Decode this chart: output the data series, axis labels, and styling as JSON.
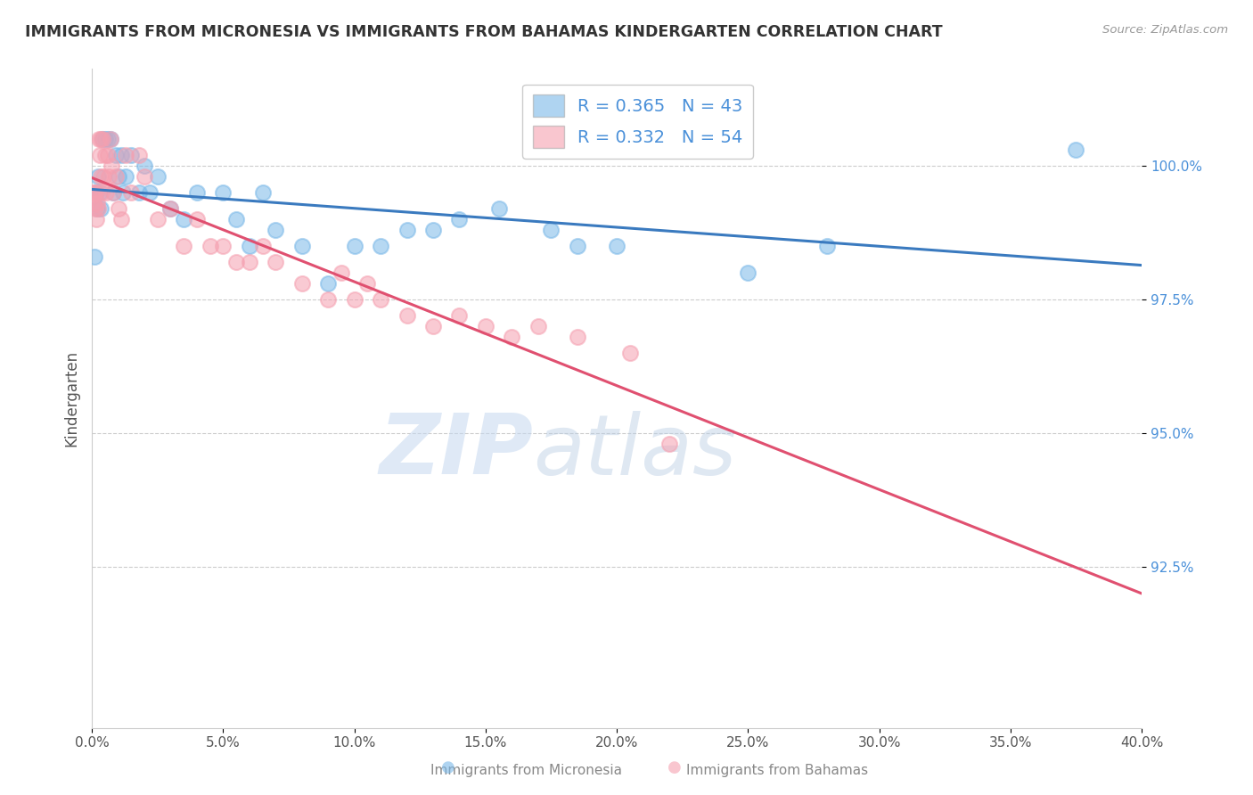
{
  "title": "IMMIGRANTS FROM MICRONESIA VS IMMIGRANTS FROM BAHAMAS KINDERGARTEN CORRELATION CHART",
  "source": "Source: ZipAtlas.com",
  "ylabel": "Kindergarten",
  "legend_label1": "Immigrants from Micronesia",
  "legend_label2": "Immigrants from Bahamas",
  "R1": 0.365,
  "N1": 43,
  "R2": 0.332,
  "N2": 54,
  "xmin": 0.0,
  "xmax": 40.0,
  "ymin": 89.5,
  "ymax": 101.8,
  "yticks": [
    92.5,
    95.0,
    97.5,
    100.0
  ],
  "xticks": [
    0.0,
    5.0,
    10.0,
    15.0,
    20.0,
    25.0,
    30.0,
    35.0,
    40.0
  ],
  "color_blue": "#7ab8e8",
  "color_pink": "#f5a0b0",
  "color_blue_line": "#3a7abf",
  "color_pink_line": "#e05070",
  "background_color": "#ffffff",
  "watermark_zip": "ZIP",
  "watermark_atlas": "atlas",
  "micronesia_x": [
    0.1,
    0.15,
    0.2,
    0.25,
    0.3,
    0.35,
    0.4,
    0.5,
    0.6,
    0.7,
    0.8,
    0.9,
    1.0,
    1.1,
    1.2,
    1.3,
    1.5,
    1.8,
    2.0,
    2.2,
    2.5,
    3.0,
    3.5,
    4.0,
    5.0,
    5.5,
    6.0,
    6.5,
    7.0,
    8.0,
    9.0,
    10.0,
    11.0,
    12.0,
    13.0,
    14.0,
    15.5,
    17.5,
    18.5,
    20.0,
    25.0,
    28.0,
    37.5
  ],
  "micronesia_y": [
    98.3,
    99.5,
    99.2,
    99.8,
    99.5,
    99.2,
    100.5,
    100.5,
    100.5,
    100.5,
    99.5,
    100.2,
    99.8,
    100.2,
    99.5,
    99.8,
    100.2,
    99.5,
    100.0,
    99.5,
    99.8,
    99.2,
    99.0,
    99.5,
    99.5,
    99.0,
    98.5,
    99.5,
    98.8,
    98.5,
    97.8,
    98.5,
    98.5,
    98.8,
    98.8,
    99.0,
    99.2,
    98.8,
    98.5,
    98.5,
    98.0,
    98.5,
    100.3
  ],
  "bahamas_x": [
    0.05,
    0.08,
    0.1,
    0.12,
    0.15,
    0.18,
    0.2,
    0.25,
    0.28,
    0.3,
    0.32,
    0.35,
    0.38,
    0.4,
    0.45,
    0.5,
    0.55,
    0.6,
    0.65,
    0.7,
    0.75,
    0.8,
    0.9,
    1.0,
    1.1,
    1.3,
    1.5,
    1.8,
    2.0,
    2.5,
    3.0,
    3.5,
    4.0,
    4.5,
    5.0,
    5.5,
    6.0,
    6.5,
    7.0,
    8.0,
    9.0,
    9.5,
    10.0,
    10.5,
    11.0,
    12.0,
    13.0,
    14.0,
    15.0,
    16.0,
    17.0,
    18.5,
    20.5,
    22.0
  ],
  "bahamas_y": [
    99.5,
    99.3,
    99.5,
    99.2,
    99.0,
    99.5,
    99.3,
    99.2,
    100.5,
    100.2,
    99.8,
    100.5,
    99.5,
    100.5,
    99.8,
    100.2,
    99.5,
    100.2,
    99.8,
    100.5,
    100.0,
    99.5,
    99.8,
    99.2,
    99.0,
    100.2,
    99.5,
    100.2,
    99.8,
    99.0,
    99.2,
    98.5,
    99.0,
    98.5,
    98.5,
    98.2,
    98.2,
    98.5,
    98.2,
    97.8,
    97.5,
    98.0,
    97.5,
    97.8,
    97.5,
    97.2,
    97.0,
    97.2,
    97.0,
    96.8,
    97.0,
    96.8,
    96.5,
    94.8
  ]
}
